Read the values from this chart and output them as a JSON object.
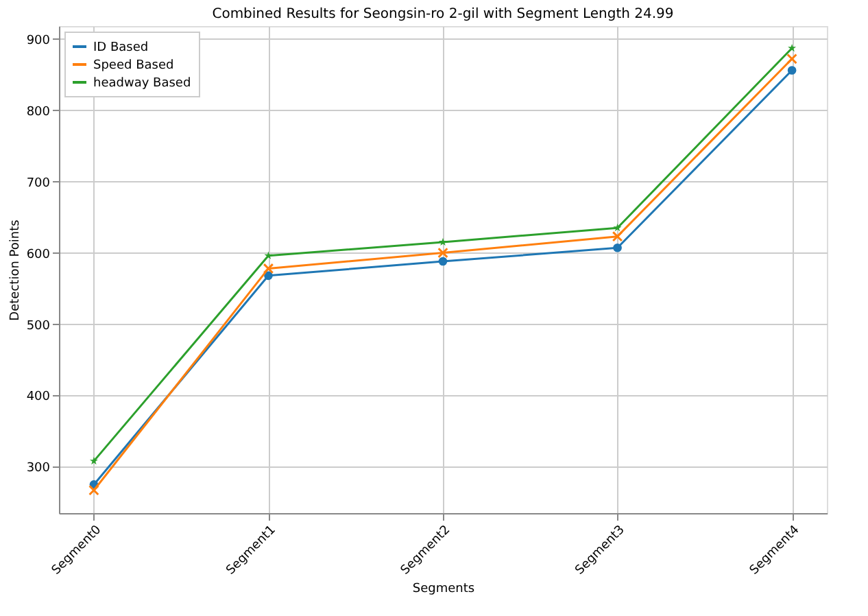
{
  "chart_data": {
    "type": "line",
    "title": "Combined Results for Seongsin-ro 2-gil with Segment Length 24.99",
    "xlabel": "Segments",
    "ylabel": "Detection Points",
    "categories": [
      "Segment0",
      "Segment1",
      "Segment2",
      "Segment3",
      "Segment4"
    ],
    "series": [
      {
        "name": "ID Based",
        "color": "#1f77b4",
        "marker": "circle",
        "values": [
          275,
          568,
          588,
          607,
          856
        ]
      },
      {
        "name": "Speed Based",
        "color": "#ff7f0e",
        "marker": "cross",
        "values": [
          267,
          578,
          600,
          623,
          872
        ]
      },
      {
        "name": "headway Based",
        "color": "#2ca02c",
        "marker": "star",
        "values": [
          308,
          596,
          615,
          635,
          887
        ]
      }
    ],
    "ylim": [
      235,
      918
    ],
    "yticks": [
      300,
      400,
      500,
      600,
      700,
      800,
      900
    ],
    "grid": true,
    "legend": "top left",
    "line_style": "solid"
  }
}
